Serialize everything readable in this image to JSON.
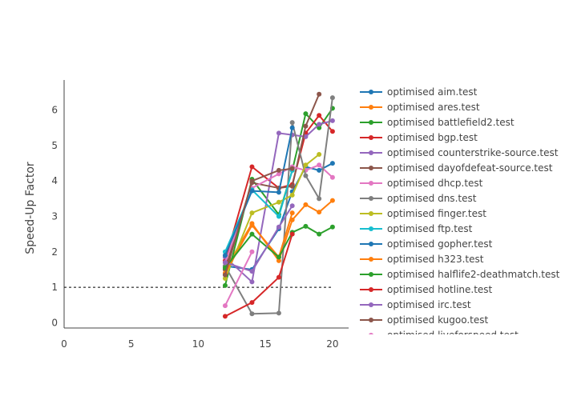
{
  "chart_data": {
    "type": "line",
    "xlabel": "",
    "ylabel": "Speed-Up Factor",
    "xlim": [
      0,
      21.2
    ],
    "ylim": [
      -0.15,
      6.85
    ],
    "xticks": [
      0,
      5,
      10,
      15,
      20
    ],
    "yticks": [
      0,
      1,
      2,
      3,
      4,
      5,
      6
    ],
    "grid": false,
    "legend_position": "right",
    "reference_line": {
      "y": 1,
      "style": "dashed",
      "color": "#000000"
    },
    "series": [
      {
        "name": "optimised aim.test",
        "color": "#1f77b4",
        "x": [
          12,
          14,
          16,
          17,
          18,
          19,
          20
        ],
        "y": [
          1.6,
          1.5,
          2.65,
          3.7,
          4.4,
          4.3,
          4.5
        ]
      },
      {
        "name": "optimised ares.test",
        "color": "#ff7f0e",
        "x": [
          12,
          14,
          16,
          17,
          18,
          19,
          20
        ],
        "y": [
          1.5,
          2.8,
          1.75,
          2.9,
          3.33,
          3.12,
          3.45
        ]
      },
      {
        "name": "optimised battlefield2.test",
        "color": "#2ca02c",
        "x": [
          12,
          14,
          16,
          17,
          18,
          19,
          20
        ],
        "y": [
          1.05,
          4.05,
          3.05,
          4.3,
          5.9,
          5.5,
          6.05
        ]
      },
      {
        "name": "optimised bgp.test",
        "color": "#d62728",
        "x": [
          12,
          14,
          16,
          17,
          18,
          19,
          20
        ],
        "y": [
          1.75,
          4.4,
          3.8,
          3.9,
          5.35,
          5.85,
          5.4
        ]
      },
      {
        "name": "optimised counterstrike-source.test",
        "color": "#9467bd",
        "x": [
          12,
          14,
          16,
          17,
          18,
          19,
          20
        ],
        "y": [
          1.85,
          1.15,
          5.35,
          5.3,
          5.25,
          5.6,
          5.7
        ]
      },
      {
        "name": "optimised dayofdefeat-source.test",
        "color": "#8c564b",
        "x": [
          12,
          14,
          16,
          17,
          18,
          19
        ],
        "y": [
          1.5,
          3.95,
          3.8,
          3.85,
          5.55,
          6.45
        ]
      },
      {
        "name": "optimised dhcp.test",
        "color": "#e377c2",
        "x": [
          12,
          14,
          16,
          17,
          18,
          19,
          20
        ],
        "y": [
          1.7,
          3.8,
          4.2,
          4.4,
          4.3,
          4.45,
          4.1
        ]
      },
      {
        "name": "optimised dns.test",
        "color": "#7f7f7f",
        "x": [
          12,
          14,
          16,
          17,
          18,
          19,
          20
        ],
        "y": [
          1.6,
          0.25,
          0.27,
          5.65,
          4.15,
          3.5,
          6.35
        ]
      },
      {
        "name": "optimised finger.test",
        "color": "#bcbd22",
        "x": [
          12,
          14,
          16,
          17,
          18,
          19
        ],
        "y": [
          1.25,
          3.1,
          3.4,
          3.6,
          4.45,
          4.75
        ]
      },
      {
        "name": "optimised ftp.test",
        "color": "#17becf",
        "x": [
          12,
          14,
          16,
          17
        ],
        "y": [
          2.0,
          3.75,
          3.0,
          4.3
        ]
      },
      {
        "name": "optimised gopher.test",
        "color": "#1f77b4",
        "x": [
          12,
          14,
          16,
          17
        ],
        "y": [
          1.9,
          3.72,
          3.68,
          5.5
        ]
      },
      {
        "name": "optimised h323.test",
        "color": "#ff7f0e",
        "x": [
          12,
          14,
          16,
          17
        ],
        "y": [
          1.4,
          2.75,
          1.85,
          3.1
        ]
      },
      {
        "name": "optimised halflife2-deathmatch.test",
        "color": "#2ca02c",
        "x": [
          12,
          14,
          16,
          17,
          18,
          19,
          20
        ],
        "y": [
          1.55,
          2.5,
          1.85,
          2.55,
          2.72,
          2.5,
          2.7
        ]
      },
      {
        "name": "optimised hotline.test",
        "color": "#d62728",
        "x": [
          12,
          14,
          16,
          17
        ],
        "y": [
          0.18,
          0.57,
          1.28,
          2.5
        ]
      },
      {
        "name": "optimised irc.test",
        "color": "#9467bd",
        "x": [
          12,
          14,
          16,
          17
        ],
        "y": [
          1.7,
          1.45,
          2.7,
          3.3
        ]
      },
      {
        "name": "optimised kugoo.test",
        "color": "#8c564b",
        "x": [
          12,
          14,
          16,
          17
        ],
        "y": [
          1.35,
          4.0,
          4.3,
          4.35
        ]
      },
      {
        "name": "optimised liveforspeed.test",
        "color": "#e377c2",
        "x": [
          12,
          14
        ],
        "y": [
          0.48,
          2.0
        ]
      }
    ]
  }
}
